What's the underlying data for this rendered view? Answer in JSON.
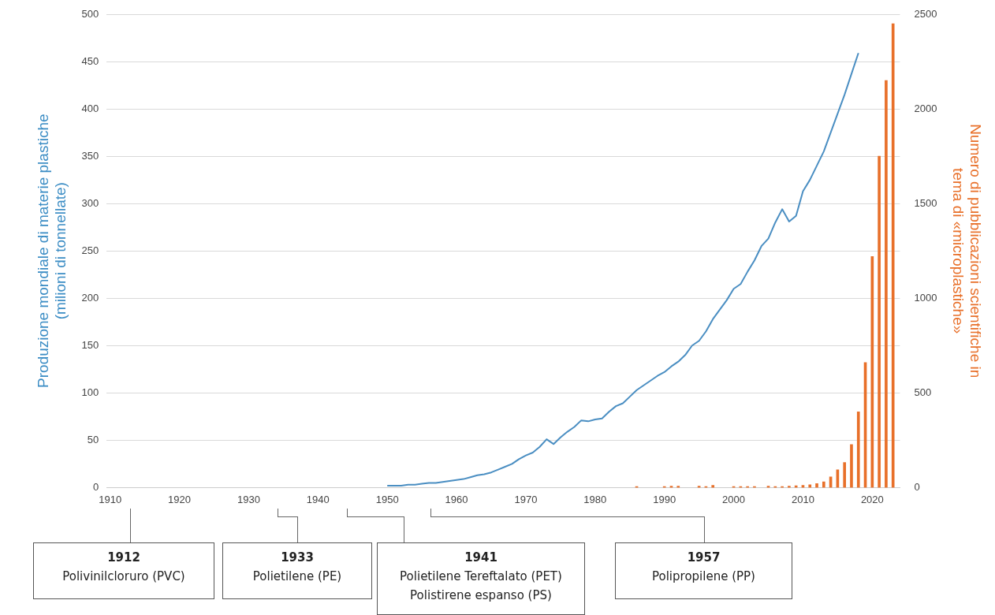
{
  "chart_data": {
    "type": "line",
    "ylabel": "Produzione mondiale di materie plastiche\n(milioni di tonnellate)",
    "y2label": "Numero di pubblicazioni scientifiche in\ntema di «microplastiche»",
    "xlim": [
      1909.5,
      2024
    ],
    "xticks": [
      1910,
      1920,
      1930,
      1940,
      1950,
      1960,
      1970,
      1980,
      1990,
      2000,
      2010,
      2020
    ],
    "ylim": [
      0,
      500
    ],
    "yticks": [
      0,
      50,
      100,
      150,
      200,
      250,
      300,
      350,
      400,
      450,
      500
    ],
    "y2lim": [
      0,
      2500
    ],
    "y2ticks": [
      0,
      500,
      1000,
      1500,
      2000,
      2500
    ],
    "grid": "y",
    "legend": false,
    "marker": "none",
    "series": [
      {
        "color": "#4a8ec2",
        "x": [
          1950,
          1951,
          1952,
          1953,
          1954,
          1955,
          1956,
          1957,
          1958,
          1959,
          1960,
          1961,
          1962,
          1963,
          1964,
          1965,
          1966,
          1967,
          1968,
          1969,
          1970,
          1971,
          1972,
          1973,
          1974,
          1975,
          1976,
          1977,
          1978,
          1979,
          1980,
          1981,
          1982,
          1983,
          1984,
          1985,
          1986,
          1987,
          1988,
          1989,
          1990,
          1991,
          1992,
          1993,
          1994,
          1995,
          1996,
          1997,
          1998,
          1999,
          2000,
          2001,
          2002,
          2003,
          2004,
          2005,
          2006,
          2007,
          2008,
          2009,
          2010,
          2011,
          2012,
          2013,
          2014,
          2015,
          2016,
          2017,
          2018
        ],
        "values": [
          2,
          2,
          2,
          3,
          3,
          4,
          5,
          5,
          6,
          7,
          8,
          9,
          11,
          13,
          14,
          16,
          19,
          22,
          25,
          30,
          34,
          37,
          43,
          51,
          46,
          53,
          59,
          64,
          71,
          70,
          72,
          73,
          80,
          86,
          89,
          96,
          103,
          108,
          113,
          118,
          122,
          128,
          133,
          140,
          150,
          155,
          165,
          178,
          188,
          198,
          210,
          215,
          228,
          240,
          255,
          263,
          280,
          294,
          281,
          287,
          313,
          325,
          340,
          355,
          375,
          395,
          415,
          437,
          459
        ]
      },
      {
        "type": "bar",
        "axis": "y2",
        "color": "#e8702a",
        "x": [
          1986,
          1990,
          1991,
          1992,
          1995,
          1996,
          1997,
          2000,
          2001,
          2002,
          2003,
          2005,
          2006,
          2007,
          2008,
          2009,
          2010,
          2011,
          2012,
          2013,
          2014,
          2015,
          2016,
          2017,
          2018,
          2019,
          2020,
          2021,
          2022,
          2023
        ],
        "values": [
          5,
          5,
          8,
          8,
          8,
          5,
          12,
          5,
          5,
          5,
          5,
          8,
          5,
          5,
          8,
          10,
          12,
          15,
          21,
          30,
          56,
          94,
          133,
          227,
          400,
          660,
          1220,
          1750,
          2150,
          2450
        ]
      }
    ],
    "annotations": [
      "1912\nPolivinilcloruro (PVC)",
      "1933\nPolietilene (PE)",
      "1941\nPolietilene Tereftalato (PET)\nPolistirene espanso (PS)",
      "1957\nPolipropilene (PP)"
    ]
  }
}
